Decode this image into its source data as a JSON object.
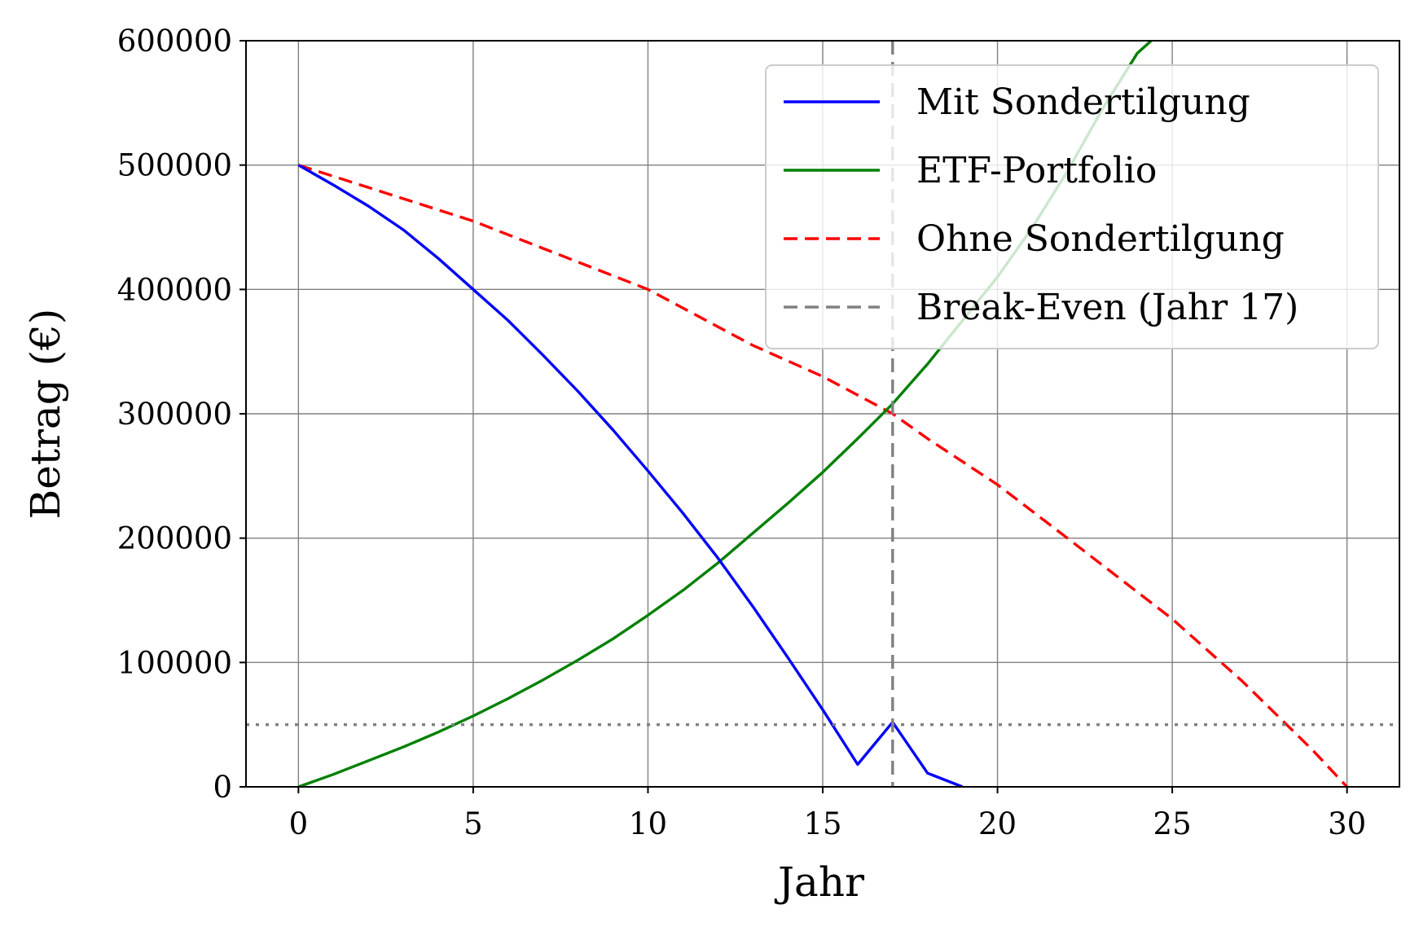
{
  "chart_data": {
    "type": "line",
    "xlabel": "Jahr",
    "ylabel": "Betrag (€)",
    "xlim": [
      -1.5,
      31.5
    ],
    "ylim": [
      0,
      600000
    ],
    "x_ticks": [
      0,
      5,
      10,
      15,
      20,
      25,
      30
    ],
    "y_ticks": [
      0,
      100000,
      200000,
      300000,
      400000,
      500000,
      600000
    ],
    "grid": true,
    "legend_position": "top-right",
    "series": [
      {
        "name": "Mit Sondertilgung",
        "color": "#0000ff",
        "style": "solid",
        "x": [
          0,
          1,
          2,
          3,
          4,
          5,
          6,
          7,
          8,
          9,
          10,
          11,
          12,
          13,
          14,
          15,
          16,
          17,
          18,
          19
        ],
        "y": [
          500000,
          484000,
          467000,
          448000,
          425000,
          400000,
          375000,
          347000,
          318000,
          287000,
          254000,
          220000,
          184000,
          145000,
          104000,
          62000,
          18000,
          52000,
          11000,
          0
        ]
      },
      {
        "name": "ETF-Portfolio",
        "color": "#008000",
        "style": "solid",
        "x": [
          0,
          1,
          2,
          3,
          4,
          5,
          6,
          7,
          8,
          9,
          10,
          11,
          12,
          13,
          14,
          15,
          16,
          17,
          18,
          19,
          20,
          21,
          22,
          23,
          24,
          24.4
        ],
        "y": [
          0,
          10000,
          21000,
          32000,
          44000,
          57000,
          71000,
          86000,
          102000,
          119000,
          138000,
          158000,
          180000,
          204000,
          228000,
          253000,
          280000,
          308000,
          340000,
          375000,
          410000,
          450000,
          495000,
          545000,
          590000,
          600000
        ]
      },
      {
        "name": "Ohne Sondertilgung",
        "color": "#ff0000",
        "style": "dashed",
        "x": [
          0,
          5,
          10,
          13,
          15,
          17,
          18,
          20,
          22,
          25,
          27,
          29,
          30
        ],
        "y": [
          500000,
          455000,
          400000,
          355000,
          330000,
          300000,
          280000,
          243000,
          200000,
          135000,
          85000,
          30000,
          0
        ]
      }
    ],
    "reference_lines": [
      {
        "name": "Break-Even (Jahr 17)",
        "orientation": "vertical",
        "x": 17,
        "color": "#808080",
        "style": "dashed"
      },
      {
        "orientation": "horizontal",
        "y": 50000,
        "color": "#808080",
        "style": "dotted"
      }
    ]
  }
}
